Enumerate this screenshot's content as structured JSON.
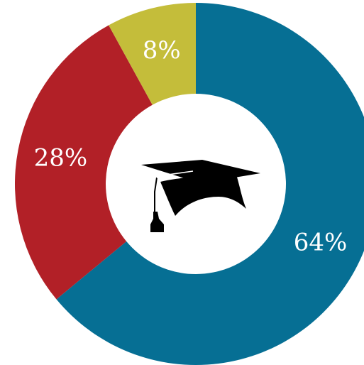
{
  "chart_data": {
    "type": "pie",
    "variant": "donut",
    "slices": [
      {
        "label": "64%",
        "value": 64,
        "color": "#066F94"
      },
      {
        "label": "28%",
        "value": 28,
        "color": "#B22027"
      },
      {
        "label": "8%",
        "value": 8,
        "color": "#C4BD3A"
      }
    ],
    "start_angle_deg": 0,
    "direction": "clockwise",
    "center_icon": "graduation-cap-icon"
  }
}
